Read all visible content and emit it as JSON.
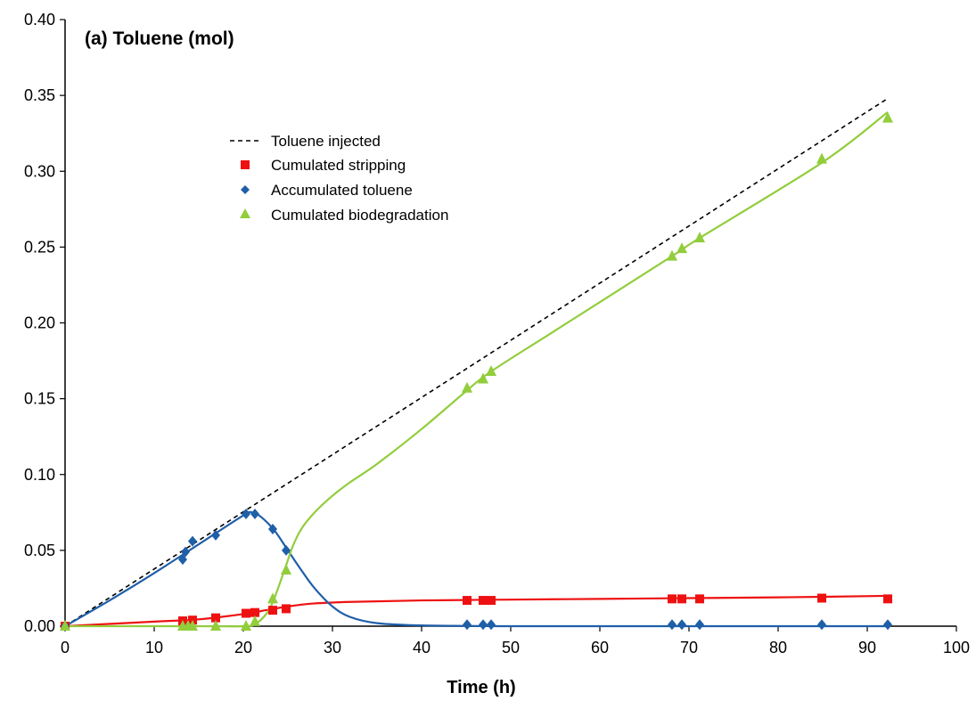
{
  "chart_data": {
    "type": "scatter",
    "title": "(a) Toluene (mol)",
    "xlabel": "Time (h)",
    "ylabel": "",
    "xlim": [
      0,
      100
    ],
    "ylim": [
      0,
      0.4
    ],
    "x_ticks": [
      0,
      10,
      20,
      30,
      40,
      50,
      60,
      70,
      80,
      90,
      100
    ],
    "x_tick_labels": [
      "0",
      "10",
      "20",
      "30",
      "40",
      "50",
      "60",
      "70",
      "80",
      "90",
      "100"
    ],
    "y_ticks": [
      0,
      0.05,
      0.1,
      0.15,
      0.2,
      0.25,
      0.3,
      0.35,
      0.4
    ],
    "y_tick_labels": [
      "0.00",
      "0.05",
      "0.10",
      "0.15",
      "0.20",
      "0.25",
      "0.30",
      "0.35",
      "0.40"
    ],
    "grid": false,
    "legend_position": "upper-left-center",
    "series": [
      {
        "name": "Toluene injected",
        "kind": "line",
        "color": "#000000",
        "dash": true,
        "x": [
          0,
          92.3
        ],
        "y": [
          0,
          0.348
        ]
      },
      {
        "name": "Cumulated stripping",
        "kind": "marker",
        "marker": "square",
        "color": "#ee1111",
        "x": [
          0,
          13.2,
          14.3,
          16.9,
          20.3,
          21.3,
          23.3,
          24.8,
          45.1,
          46.9,
          47.8,
          68.1,
          69.2,
          71.2,
          84.9,
          92.3
        ],
        "y": [
          0,
          0.0035,
          0.004,
          0.0055,
          0.0085,
          0.009,
          0.0105,
          0.0115,
          0.017,
          0.017,
          0.017,
          0.018,
          0.018,
          0.018,
          0.0185,
          0.018
        ]
      },
      {
        "name": "Accumulated toluene",
        "kind": "marker",
        "marker": "diamond",
        "color": "#1f5fa8",
        "x": [
          0,
          13.2,
          13.5,
          14.3,
          16.9,
          20.3,
          21.3,
          23.3,
          24.8,
          45.1,
          46.9,
          47.8,
          68.1,
          69.2,
          71.2,
          84.9,
          92.3
        ],
        "y": [
          0,
          0.044,
          0.049,
          0.056,
          0.06,
          0.074,
          0.074,
          0.064,
          0.05,
          0.001,
          0.001,
          0.001,
          0.001,
          0.001,
          0.001,
          0.001,
          0.001
        ]
      },
      {
        "name": "Cumulated biodegradation",
        "kind": "marker",
        "marker": "triangle",
        "color": "#92cd3c",
        "x": [
          0,
          13.2,
          13.8,
          14.3,
          16.9,
          20.3,
          21.3,
          23.3,
          24.8,
          45.1,
          46.9,
          47.8,
          68.1,
          69.2,
          71.2,
          84.9,
          92.3
        ],
        "y": [
          0,
          0,
          0,
          0,
          0,
          0,
          0.003,
          0.018,
          0.037,
          0.157,
          0.163,
          0.168,
          0.244,
          0.249,
          0.256,
          0.308,
          0.335
        ]
      }
    ],
    "fit_curves": [
      {
        "series": "Cumulated stripping",
        "color": "#ee1111",
        "x": [
          0,
          10,
          15,
          20,
          22,
          25,
          28,
          32,
          40,
          50,
          60,
          70,
          80,
          92.3
        ],
        "y": [
          0,
          0.003,
          0.0045,
          0.008,
          0.01,
          0.013,
          0.015,
          0.016,
          0.017,
          0.0175,
          0.018,
          0.0185,
          0.019,
          0.02
        ]
      },
      {
        "series": "Accumulated toluene",
        "color": "#1f5fa8",
        "x": [
          0,
          5,
          10,
          15,
          20,
          21,
          22,
          23.5,
          25,
          26.5,
          28,
          30,
          32,
          35,
          40,
          50,
          70,
          92.3
        ],
        "y": [
          0,
          0.017,
          0.035,
          0.054,
          0.073,
          0.075,
          0.072,
          0.063,
          0.05,
          0.037,
          0.025,
          0.013,
          0.006,
          0.002,
          0.0005,
          0,
          0,
          0
        ]
      },
      {
        "series": "Cumulated biodegradation",
        "color": "#92cd3c",
        "x": [
          0,
          15,
          20,
          21.5,
          23,
          24.5,
          25.5,
          26.5,
          28,
          30,
          32,
          35,
          40,
          45,
          47.8,
          55,
          68.1,
          71.2,
          85,
          92.3
        ],
        "y": [
          0,
          0,
          0,
          0.002,
          0.012,
          0.035,
          0.052,
          0.064,
          0.075,
          0.086,
          0.095,
          0.107,
          0.13,
          0.155,
          0.168,
          0.195,
          0.244,
          0.256,
          0.306,
          0.339
        ]
      }
    ]
  }
}
